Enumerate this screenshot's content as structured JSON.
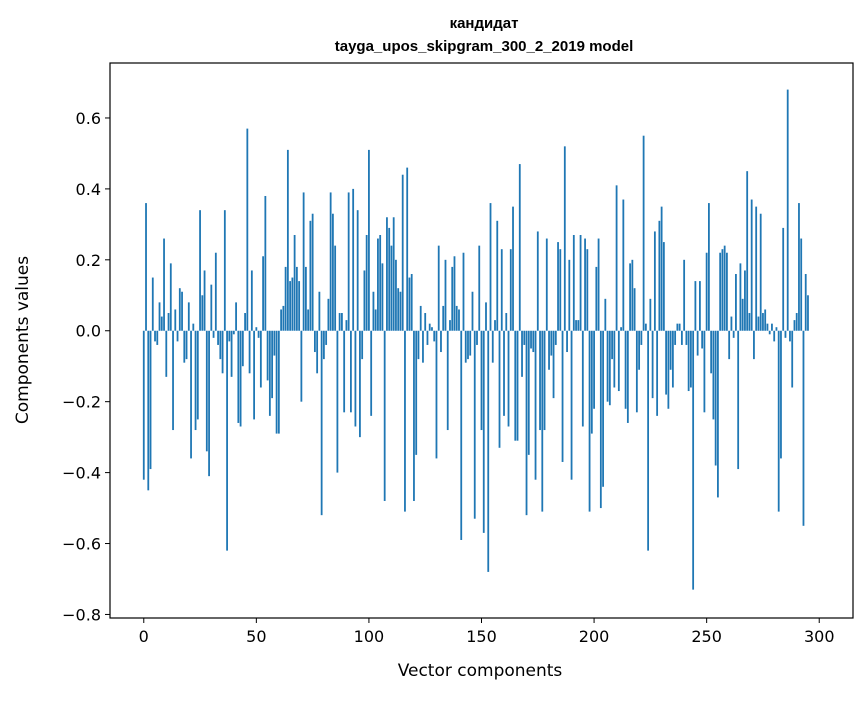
{
  "chart_data": {
    "type": "bar",
    "title": "кандидат",
    "subtitle": "tayga_upos_skipgram_300_2_2019 model",
    "xlabel": "Vector components",
    "ylabel": "Components values",
    "xlim": [
      -15,
      315
    ],
    "ylim": [
      -0.81,
      0.755
    ],
    "x_ticks": [
      0,
      50,
      100,
      150,
      200,
      250,
      300
    ],
    "x_tick_labels": [
      "0",
      "50",
      "100",
      "150",
      "200",
      "250",
      "300"
    ],
    "y_ticks": [
      -0.8,
      -0.6,
      -0.4,
      -0.2,
      0.0,
      0.2,
      0.4,
      0.6
    ],
    "y_tick_labels": [
      "−0.8",
      "−0.6",
      "−0.4",
      "−0.2",
      "0.0",
      "0.2",
      "0.4",
      "0.6"
    ],
    "grid": false,
    "bar_color": "#1f77b4",
    "x_start": 0,
    "values": [
      -0.42,
      0.36,
      -0.45,
      -0.39,
      0.15,
      -0.03,
      -0.04,
      0.08,
      0.04,
      0.26,
      -0.13,
      0.05,
      0.19,
      -0.28,
      0.06,
      -0.03,
      0.12,
      0.11,
      -0.09,
      -0.08,
      0.08,
      -0.36,
      0.02,
      -0.28,
      -0.25,
      0.34,
      0.1,
      0.17,
      -0.34,
      -0.41,
      0.13,
      -0.02,
      0.22,
      -0.04,
      -0.08,
      -0.12,
      0.34,
      -0.62,
      -0.03,
      -0.13,
      -0.01,
      0.08,
      -0.26,
      -0.27,
      -0.1,
      0.05,
      0.57,
      -0.12,
      0.17,
      -0.25,
      0.01,
      -0.02,
      -0.16,
      0.21,
      0.38,
      -0.14,
      -0.24,
      -0.19,
      -0.07,
      -0.29,
      -0.29,
      0.06,
      0.07,
      0.18,
      0.51,
      0.14,
      0.15,
      0.27,
      0.18,
      0.14,
      -0.2,
      0.39,
      0.18,
      0.06,
      0.31,
      0.33,
      -0.06,
      -0.12,
      0.11,
      -0.52,
      -0.08,
      -0.04,
      0.09,
      0.39,
      0.33,
      0.24,
      -0.4,
      0.05,
      0.05,
      -0.23,
      0.03,
      0.39,
      -0.23,
      0.4,
      -0.27,
      0.34,
      -0.3,
      -0.08,
      0.17,
      0.27,
      0.51,
      -0.24,
      0.11,
      0.06,
      0.26,
      0.27,
      0.19,
      -0.48,
      0.32,
      0.29,
      0.24,
      0.32,
      0.2,
      0.12,
      0.11,
      0.44,
      -0.51,
      0.46,
      0.15,
      0.16,
      -0.48,
      -0.35,
      -0.08,
      0.07,
      -0.09,
      0.05,
      -0.04,
      0.02,
      0.01,
      -0.03,
      -0.36,
      0.24,
      -0.06,
      0.07,
      0.2,
      -0.28,
      0.03,
      0.18,
      0.21,
      0.07,
      0.06,
      -0.59,
      0.22,
      -0.09,
      -0.08,
      -0.07,
      0.11,
      -0.53,
      -0.04,
      0.24,
      -0.28,
      -0.57,
      0.08,
      -0.68,
      0.36,
      -0.09,
      0.03,
      0.31,
      -0.33,
      0.23,
      -0.24,
      0.05,
      -0.27,
      0.23,
      0.35,
      -0.31,
      -0.31,
      0.47,
      -0.13,
      -0.04,
      -0.52,
      -0.35,
      -0.05,
      -0.06,
      -0.42,
      0.28,
      -0.28,
      -0.51,
      -0.28,
      0.26,
      -0.11,
      -0.07,
      -0.19,
      -0.04,
      0.25,
      0.23,
      -0.37,
      0.52,
      -0.06,
      0.2,
      -0.42,
      0.27,
      0.03,
      0.03,
      0.27,
      -0.27,
      0.26,
      0.23,
      -0.51,
      -0.29,
      -0.22,
      0.18,
      0.26,
      -0.5,
      -0.44,
      0.09,
      -0.2,
      -0.21,
      -0.08,
      -0.16,
      0.41,
      -0.17,
      0.01,
      0.37,
      -0.22,
      -0.26,
      0.19,
      0.2,
      0.12,
      -0.23,
      -0.11,
      -0.04,
      0.55,
      0.02,
      -0.62,
      0.09,
      -0.19,
      0.28,
      -0.24,
      0.31,
      0.35,
      0.25,
      -0.18,
      -0.22,
      -0.11,
      -0.16,
      -0.04,
      0.02,
      0.02,
      -0.04,
      0.2,
      -0.04,
      -0.17,
      -0.16,
      -0.73,
      0.14,
      -0.07,
      0.14,
      -0.05,
      -0.23,
      0.22,
      0.36,
      -0.12,
      -0.25,
      -0.38,
      -0.47,
      0.22,
      0.23,
      0.24,
      0.22,
      -0.08,
      0.04,
      -0.02,
      0.16,
      -0.39,
      0.19,
      0.09,
      0.17,
      0.45,
      0.05,
      0.37,
      -0.08,
      0.35,
      0.04,
      0.33,
      0.05,
      0.06,
      0.02,
      -0.01,
      0.02,
      -0.03,
      0.01,
      -0.51,
      -0.36,
      0.29,
      -0.02,
      0.68,
      -0.03,
      -0.16,
      0.03,
      0.05,
      0.36,
      0.26,
      -0.55,
      0.16,
      0.1
    ]
  }
}
